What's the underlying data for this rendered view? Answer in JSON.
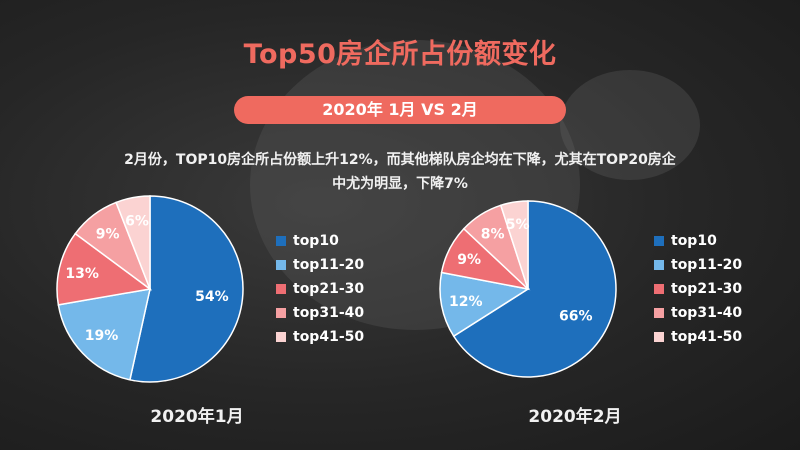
{
  "title": "Top50房企所占份额变化",
  "subtitle": "2020年 1月 VS 2月",
  "description_line1": "2月份，TOP10房企所占份额上升12%，而其他梯队房企均在下降，尤其在TOP20房企",
  "description_line2": "中尤为明显，下降7%",
  "chart_data": [
    {
      "type": "pie",
      "title": "2020年1月",
      "categories": [
        "top10",
        "top11-20",
        "top21-30",
        "top31-40",
        "top41-50"
      ],
      "values": [
        54,
        19,
        13,
        9,
        6
      ],
      "labels": [
        "54%",
        "19%",
        "13%",
        "9%",
        "6%"
      ],
      "colors": [
        "#1e6fbc",
        "#74b8ea",
        "#ee6e73",
        "#f5a0a2",
        "#fbd3d2"
      ],
      "legend_position": "right"
    },
    {
      "type": "pie",
      "title": "2020年2月",
      "categories": [
        "top10",
        "top11-20",
        "top21-30",
        "top31-40",
        "top41-50"
      ],
      "values": [
        66,
        12,
        9,
        8,
        5
      ],
      "labels": [
        "66%",
        "12%",
        "9%",
        "8%",
        "5%"
      ],
      "colors": [
        "#1e6fbc",
        "#74b8ea",
        "#ee6e73",
        "#f5a0a2",
        "#fbd3d2"
      ],
      "legend_position": "right"
    }
  ]
}
